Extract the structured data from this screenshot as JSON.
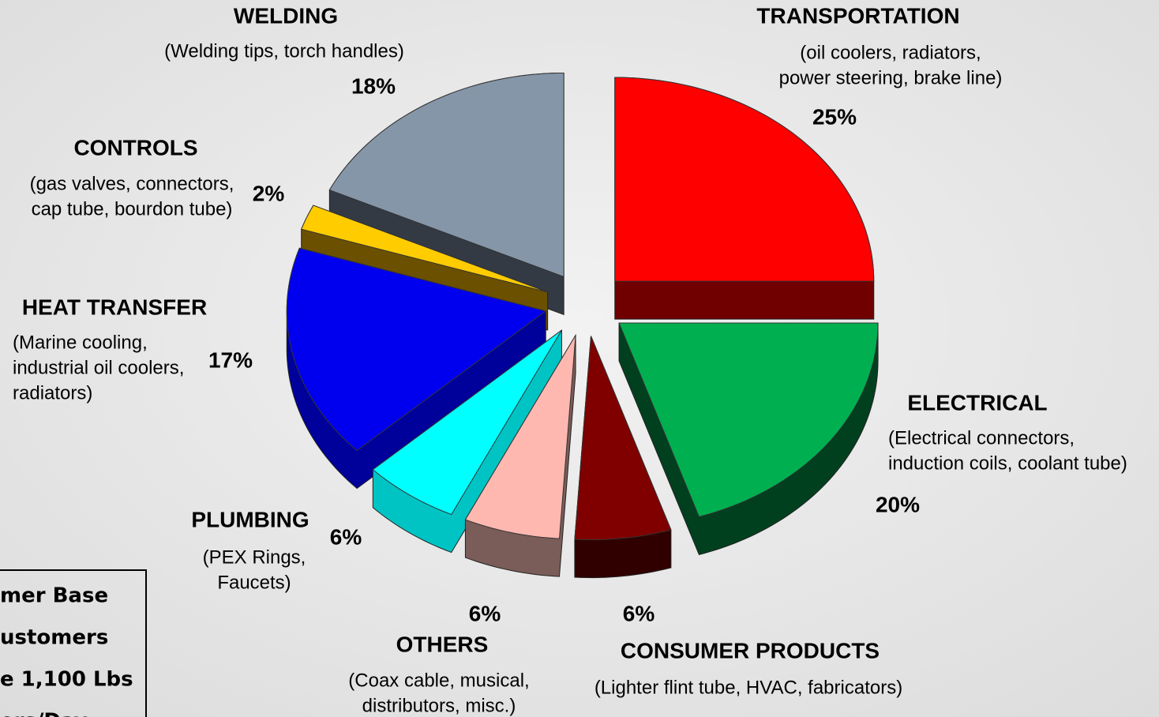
{
  "chart_data": {
    "type": "pie",
    "categories": [
      "TRANSPORTATION",
      "ELECTRICAL",
      "CONSUMER PRODUCTS",
      "OTHERS",
      "PLUMBING",
      "HEAT TRANSFER",
      "CONTROLS",
      "WELDING"
    ],
    "descriptions": [
      [
        "(oil coolers, radiators,",
        "power steering, brake line)"
      ],
      [
        "(Electrical connectors,",
        "induction coils, coolant tube)"
      ],
      [
        "(Lighter flint tube, HVAC, fabricators)"
      ],
      [
        "(Coax cable, musical,",
        "distributors, misc.)"
      ],
      [
        "(PEX Rings,",
        "Faucets)"
      ],
      [
        "(Marine cooling,",
        "industrial oil coolers,",
        "radiators)"
      ],
      [
        "(gas valves, connectors,",
        "cap tube, bourdon tube)"
      ],
      [
        "(Welding tips, torch handles)"
      ]
    ],
    "values": [
      25,
      20,
      6,
      6,
      6,
      17,
      2,
      18
    ],
    "value_labels": [
      "25%",
      "20%",
      "6%",
      "6%",
      "6%",
      "17%",
      "2%",
      "18%"
    ],
    "colors": [
      "#ff0000",
      "#00b050",
      "#800000",
      "#ffb8b0",
      "#00ffff",
      "#0000ee",
      "#ffcc00",
      "#8596a8"
    ],
    "side_colors": [
      "#700000",
      "#00401e",
      "#300000",
      "#7a5c58",
      "#00c4c4",
      "#00009a",
      "#6b5000",
      "#333a44"
    ]
  },
  "note_box": {
    "lines": [
      "mer Base",
      "ustomers",
      "e 1,100 Lbs",
      "ers/Day"
    ]
  }
}
